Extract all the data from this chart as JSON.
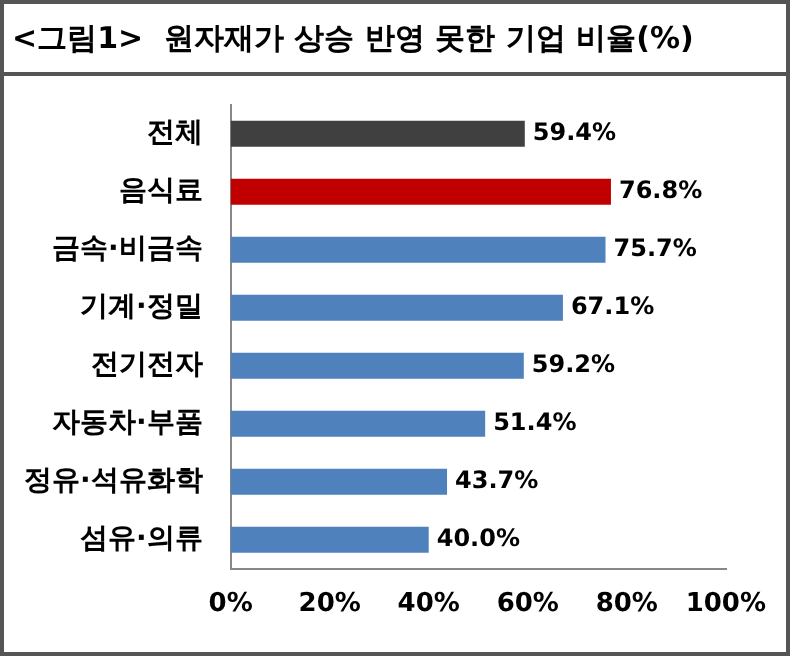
{
  "chart_data": {
    "type": "bar",
    "orientation": "horizontal",
    "title": "<그림1>  원자재가 상승 반영 못한 기업 비율(%)",
    "categories": [
      "전체",
      "음식료",
      "금속·비금속",
      "기계·정밀",
      "전기전자",
      "자동차·부품",
      "정유·석유화학",
      "섬유·의류"
    ],
    "values": [
      59.4,
      76.8,
      75.7,
      67.1,
      59.2,
      51.4,
      43.7,
      40.0
    ],
    "colors": [
      "#404040",
      "#c00000",
      "#4f81bd",
      "#4f81bd",
      "#4f81bd",
      "#4f81bd",
      "#4f81bd",
      "#4f81bd"
    ],
    "value_labels": [
      "59.4%",
      "76.8%",
      "75.7%",
      "67.1%",
      "59.2%",
      "51.4%",
      "43.7%",
      "40.0%"
    ],
    "xlim": [
      0,
      100
    ],
    "xticks": [
      {
        "value": 0,
        "label": "0%"
      },
      {
        "value": 20,
        "label": "20%"
      },
      {
        "value": 40,
        "label": "40%"
      },
      {
        "value": 60,
        "label": "60%"
      },
      {
        "value": 80,
        "label": "80%"
      },
      {
        "value": 100,
        "label": "100%"
      }
    ],
    "grid": false,
    "legend": false
  }
}
